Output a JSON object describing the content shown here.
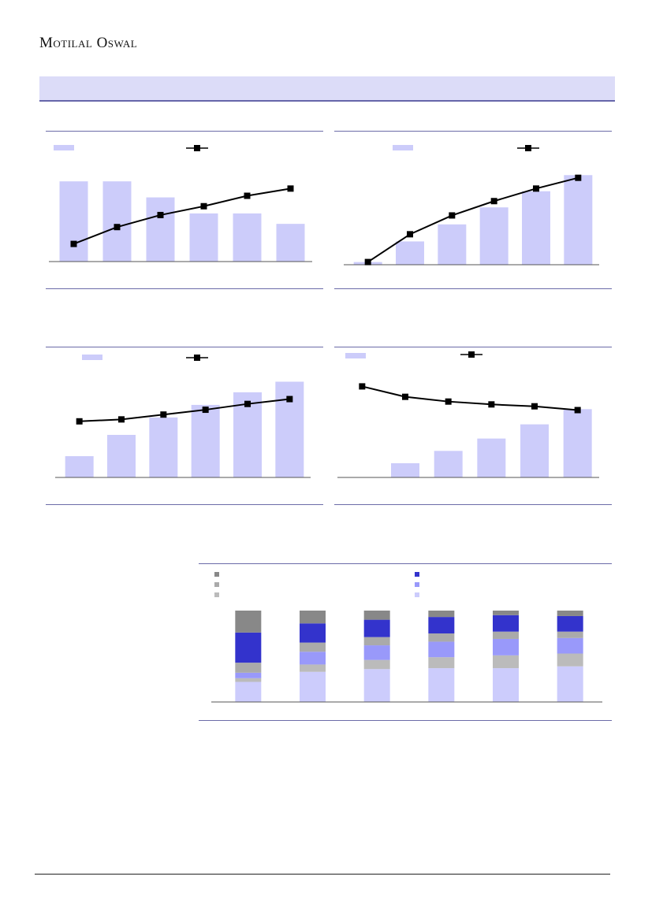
{
  "header": {
    "brand": "Motilal Oswal"
  },
  "colors": {
    "bar": "#ccccfa",
    "line": "#000000",
    "accent_bar": "#dcdcf8",
    "rule": "#6b6ba8"
  },
  "chart_data": [
    {
      "type": "bar",
      "chart": "top-left",
      "categories": [
        "",
        "",
        "",
        "",
        "",
        ""
      ],
      "series": [
        {
          "kind": "bar",
          "values": [
            100,
            100,
            80,
            60,
            60,
            47
          ]
        },
        {
          "kind": "line",
          "values": [
            22,
            43,
            58,
            69,
            82,
            91
          ]
        }
      ],
      "ylim": [
        0,
        110
      ],
      "legend": "top",
      "grid": false
    },
    {
      "type": "bar",
      "chart": "top-right",
      "categories": [
        "",
        "",
        "",
        "",
        "",
        ""
      ],
      "series": [
        {
          "kind": "bar",
          "values": [
            3,
            26,
            45,
            64,
            82,
            100
          ]
        },
        {
          "kind": "line",
          "values": [
            3,
            34,
            55,
            71,
            85,
            97
          ]
        }
      ],
      "ylim": [
        0,
        102
      ],
      "legend": "top",
      "grid": false
    },
    {
      "type": "bar",
      "chart": "mid-left",
      "categories": [
        "",
        "",
        "",
        "",
        "",
        ""
      ],
      "series": [
        {
          "kind": "bar",
          "values": [
            22,
            44,
            62,
            75,
            88,
            99
          ]
        },
        {
          "kind": "line",
          "values": [
            58,
            60,
            65,
            70,
            76,
            81
          ]
        }
      ],
      "ylim": [
        0,
        101
      ],
      "legend": "top",
      "grid": false
    },
    {
      "type": "bar",
      "chart": "mid-right",
      "categories": [
        "",
        "",
        "",
        "",
        "",
        ""
      ],
      "series": [
        {
          "kind": "bar",
          "values": [
            0,
            15,
            28,
            41,
            56,
            72
          ]
        },
        {
          "kind": "line",
          "values": [
            96,
            85,
            80,
            77,
            75,
            71
          ]
        }
      ],
      "ylim": [
        0,
        103
      ],
      "legend": "top",
      "grid": false
    },
    {
      "type": "bar",
      "chart": "bottom-stacked",
      "stacked": true,
      "categories": [
        "",
        "",
        "",
        "",
        "",
        ""
      ],
      "series": [
        {
          "color": "#ccccfc",
          "values": [
            22,
            33,
            36,
            37,
            37,
            39
          ]
        },
        {
          "color": "#bbbbbb",
          "values": [
            4,
            8,
            10,
            12,
            14,
            14
          ]
        },
        {
          "color": "#9999fa",
          "values": [
            6,
            14,
            16,
            17,
            18,
            17
          ]
        },
        {
          "color": "#aaaaaa",
          "values": [
            11,
            10,
            9,
            9,
            8,
            7
          ]
        },
        {
          "color": "#3333cc",
          "values": [
            33,
            21,
            19,
            18,
            18,
            17
          ]
        },
        {
          "color": "#888888",
          "values": [
            24,
            14,
            10,
            7,
            5,
            6
          ]
        }
      ],
      "ylim": [
        0,
        100
      ],
      "legend": "top",
      "grid": false
    }
  ]
}
